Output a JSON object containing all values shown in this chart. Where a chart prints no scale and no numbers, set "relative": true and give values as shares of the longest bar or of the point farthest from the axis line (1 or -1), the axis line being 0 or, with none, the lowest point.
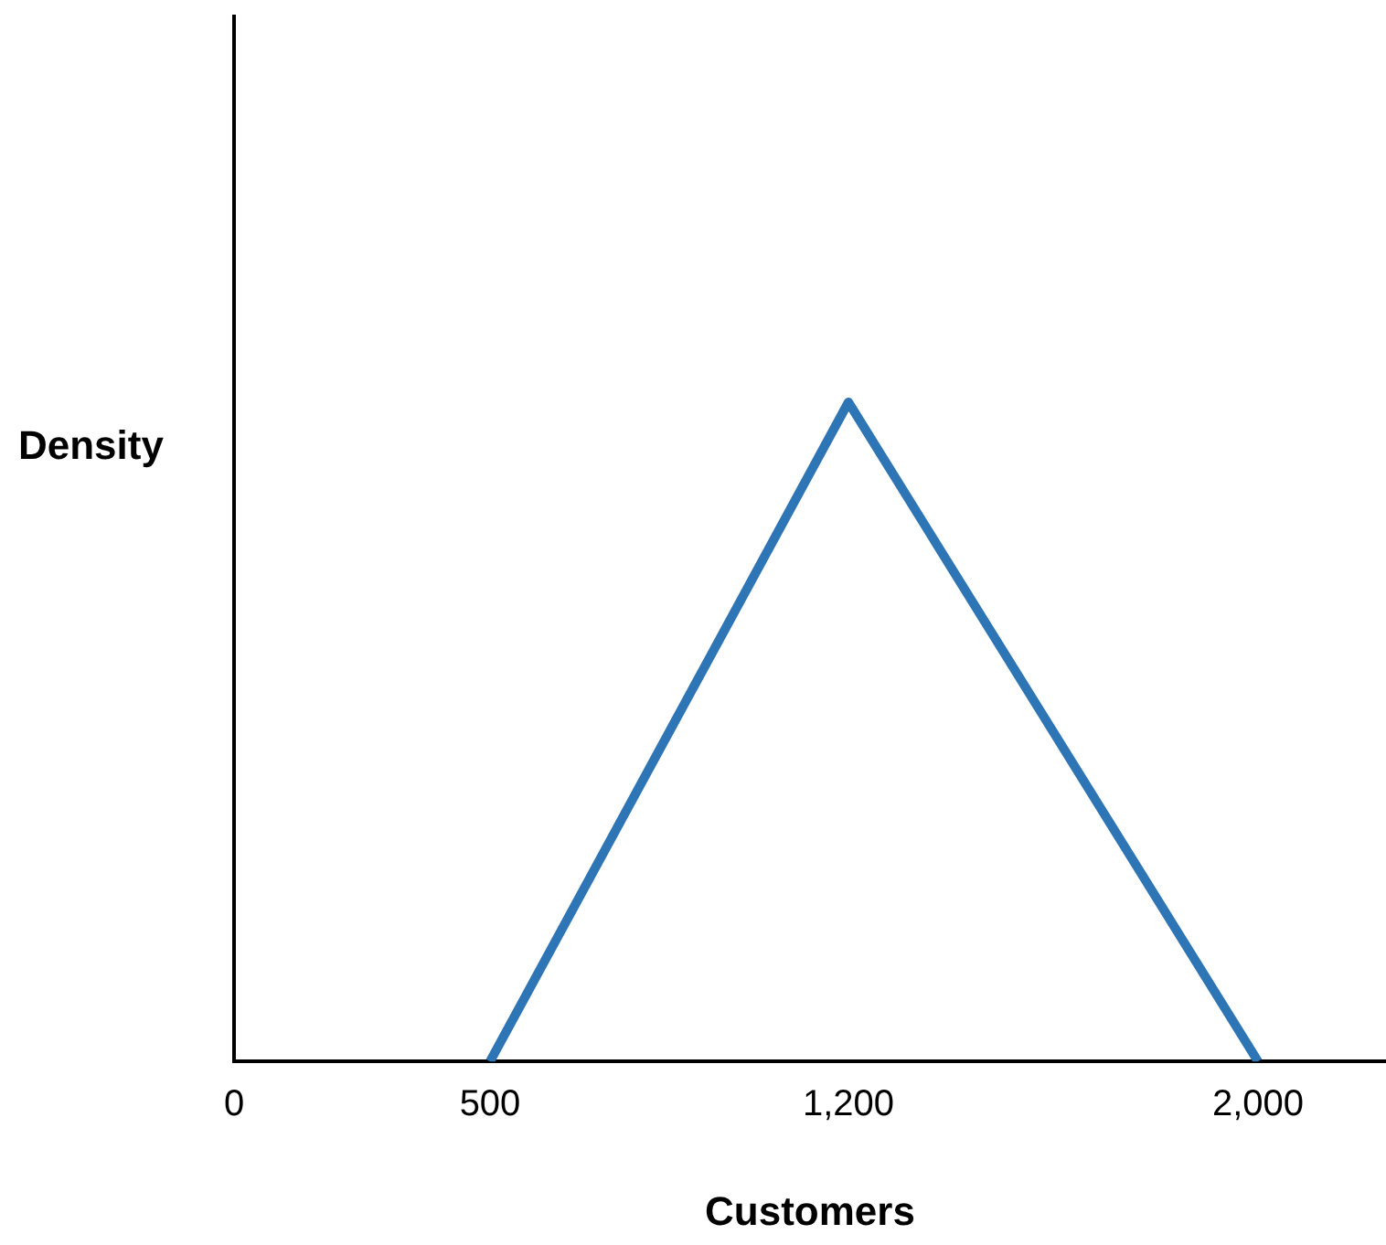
{
  "chart_data": {
    "type": "line",
    "relative": true,
    "xlabel": "Customers",
    "ylabel": "Density",
    "x": [
      500,
      1200,
      2000
    ],
    "series": [
      {
        "color": "#2e75b6",
        "values": [
          0,
          1,
          0
        ]
      }
    ],
    "xlim": [
      0,
      2250
    ],
    "xticks": [
      0,
      500,
      {
        "value": 1200,
        "label": "1,200"
      },
      {
        "value": 2000,
        "label": "2,000"
      }
    ],
    "grid": false,
    "legend": false,
    "marker": "none",
    "line_style": "solid"
  }
}
